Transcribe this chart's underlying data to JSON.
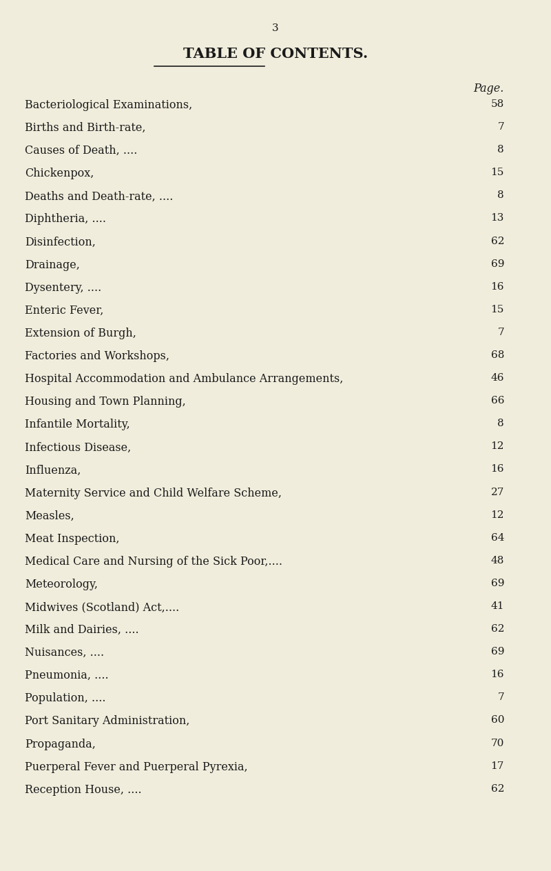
{
  "page_number": "3",
  "title": "TABLE OF CONTENTS.",
  "page_label": "Page.",
  "background_color": "#f0eddc",
  "entries": [
    {
      "text": "Bacteriological Examinations,",
      "dots": "....    ....    .....    ....",
      "page": "58"
    },
    {
      "text": "Births and Birth-rate,",
      "dots": "....    ....    ....    .....    ....",
      "page": "7"
    },
    {
      "text": "Causes of Death, ....",
      "dots": "....    ....    ....    ....    ....",
      "page": "8"
    },
    {
      "text": "Chickenpox,",
      "dots": "....    ....    ....    ....    .....    ....",
      "page": "15"
    },
    {
      "text": "Deaths and Death-rate, ....",
      "dots": "....    ....    ...    ....",
      "page": "8"
    },
    {
      "text": "Diphtheria, ....",
      "dots": "....    ....    ....    ....    ....    ....",
      "page": "13"
    },
    {
      "text": "Disinfection,",
      "dots": "....    ....    ....    ....    ....    ....",
      "page": "62"
    },
    {
      "text": "Drainage,",
      "dots": "....    ....    ....    ....    ....    ’ ....",
      "page": "69"
    },
    {
      "text": "Dysentery, ....",
      "dots": "....    ....    ....    ....    ....    ....",
      "page": "16"
    },
    {
      "text": "Enteric Fever,",
      "dots": "....    ....    .....    ....    ....    ....",
      "page": "15"
    },
    {
      "text": "Extension of Burgh,",
      "dots": "....    ....    ....    ....    ....",
      "page": "7"
    },
    {
      "text": "Factories and Workshops,",
      "dots": "....    ....    ...    ....",
      "page": "68"
    },
    {
      "text": "Hospital Accommodation and Ambulance Arrangements,",
      "dots": "",
      "page": "46"
    },
    {
      "text": "Housing and Town Planning,",
      "dots": "....    ....    ....    ....",
      "page": "66"
    },
    {
      "text": "Infantile Mortality,",
      "dots": "....    ....    ....    ....    ....",
      "page": "8"
    },
    {
      "text": "Infectious Disease,",
      "dots": "....    ....    ....    ....    ....",
      "page": "12"
    },
    {
      "text": "Influenza,",
      "dots": "....    ....    ....    .....    ....    ....",
      "page": "16"
    },
    {
      "text": "Maternity Service and Child Welfare Scheme,",
      "dots": "....",
      "page": "27"
    },
    {
      "text": "Measles,",
      "dots": "....    ....    ....    ....    ....    ....    ....",
      "page": "12"
    },
    {
      "text": "Meat Inspection,",
      "dots": "...    ....    ....    ....    ....    ....",
      "page": "64"
    },
    {
      "text": "Medical Care and Nursing of the Sick Poor,....",
      "dots": "    ....",
      "page": "48"
    },
    {
      "text": "Meteorology,",
      "dots": "...    .....    ....    ...    ....    ....",
      "page": "69"
    },
    {
      "text": "Midwives (Scotland) Act,....",
      "dots": "....    ....    ....    ....",
      "page": "41"
    },
    {
      "text": "Milk and Dairies, ....",
      "dots": "....    ....    ....    ....    ....",
      "page": "62"
    },
    {
      "text": "Nuisances, ....",
      "dots": "....    ....    ....    ....    ....    ....",
      "page": "69"
    },
    {
      "text": "Pneumonia, ....",
      "dots": "....    ....    ....    ....    ....    ....",
      "page": "16"
    },
    {
      "text": "Population, ....",
      "dots": "....    ....    ....    ....    ....    ....",
      "page": "7"
    },
    {
      "text": "Port Sanitary Administration,",
      "dots": "....    ....    ....    ...",
      "page": "60"
    },
    {
      "text": "Propaganda,",
      "dots": "....    ....    ....    .....    ....    ....",
      "page": "70"
    },
    {
      "text": "Puerperal Fever and Puerperal Pyrexia,",
      "dots": "....    ....",
      "page": "17"
    },
    {
      "text": "Reception House, ....",
      "dots": "....    ....    ....    ...    ....",
      "page": "62"
    }
  ],
  "title_fontsize": 15,
  "entry_fontsize": 11.5,
  "page_label_fontsize": 11.5,
  "page_num_fontsize": 11,
  "pagenumber_fontsize": 11
}
